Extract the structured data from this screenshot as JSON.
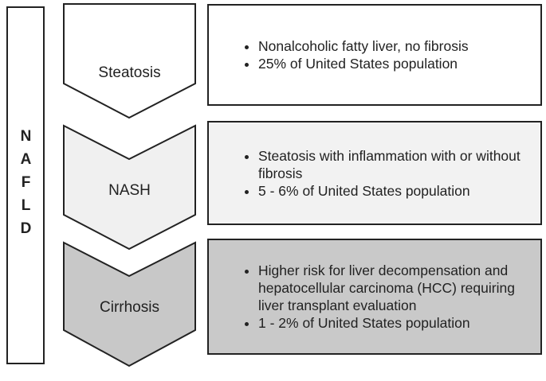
{
  "sidebar": "NAFLD",
  "stages": [
    {
      "label": "Steatosis",
      "bullets": [
        "Nonalcoholic fatty liver, no fibrosis",
        "25% of United States population"
      ]
    },
    {
      "label": "NASH",
      "bullets": [
        "Steatosis with inflammation with or without fibrosis",
        "5 - 6% of United States population"
      ]
    },
    {
      "label": "Cirrhosis",
      "bullets": [
        "Higher risk for liver decompensation and hepatocellular carcinoma (HCC) requiring liver transplant evaluation",
        "1 - 2% of United States population"
      ]
    }
  ]
}
